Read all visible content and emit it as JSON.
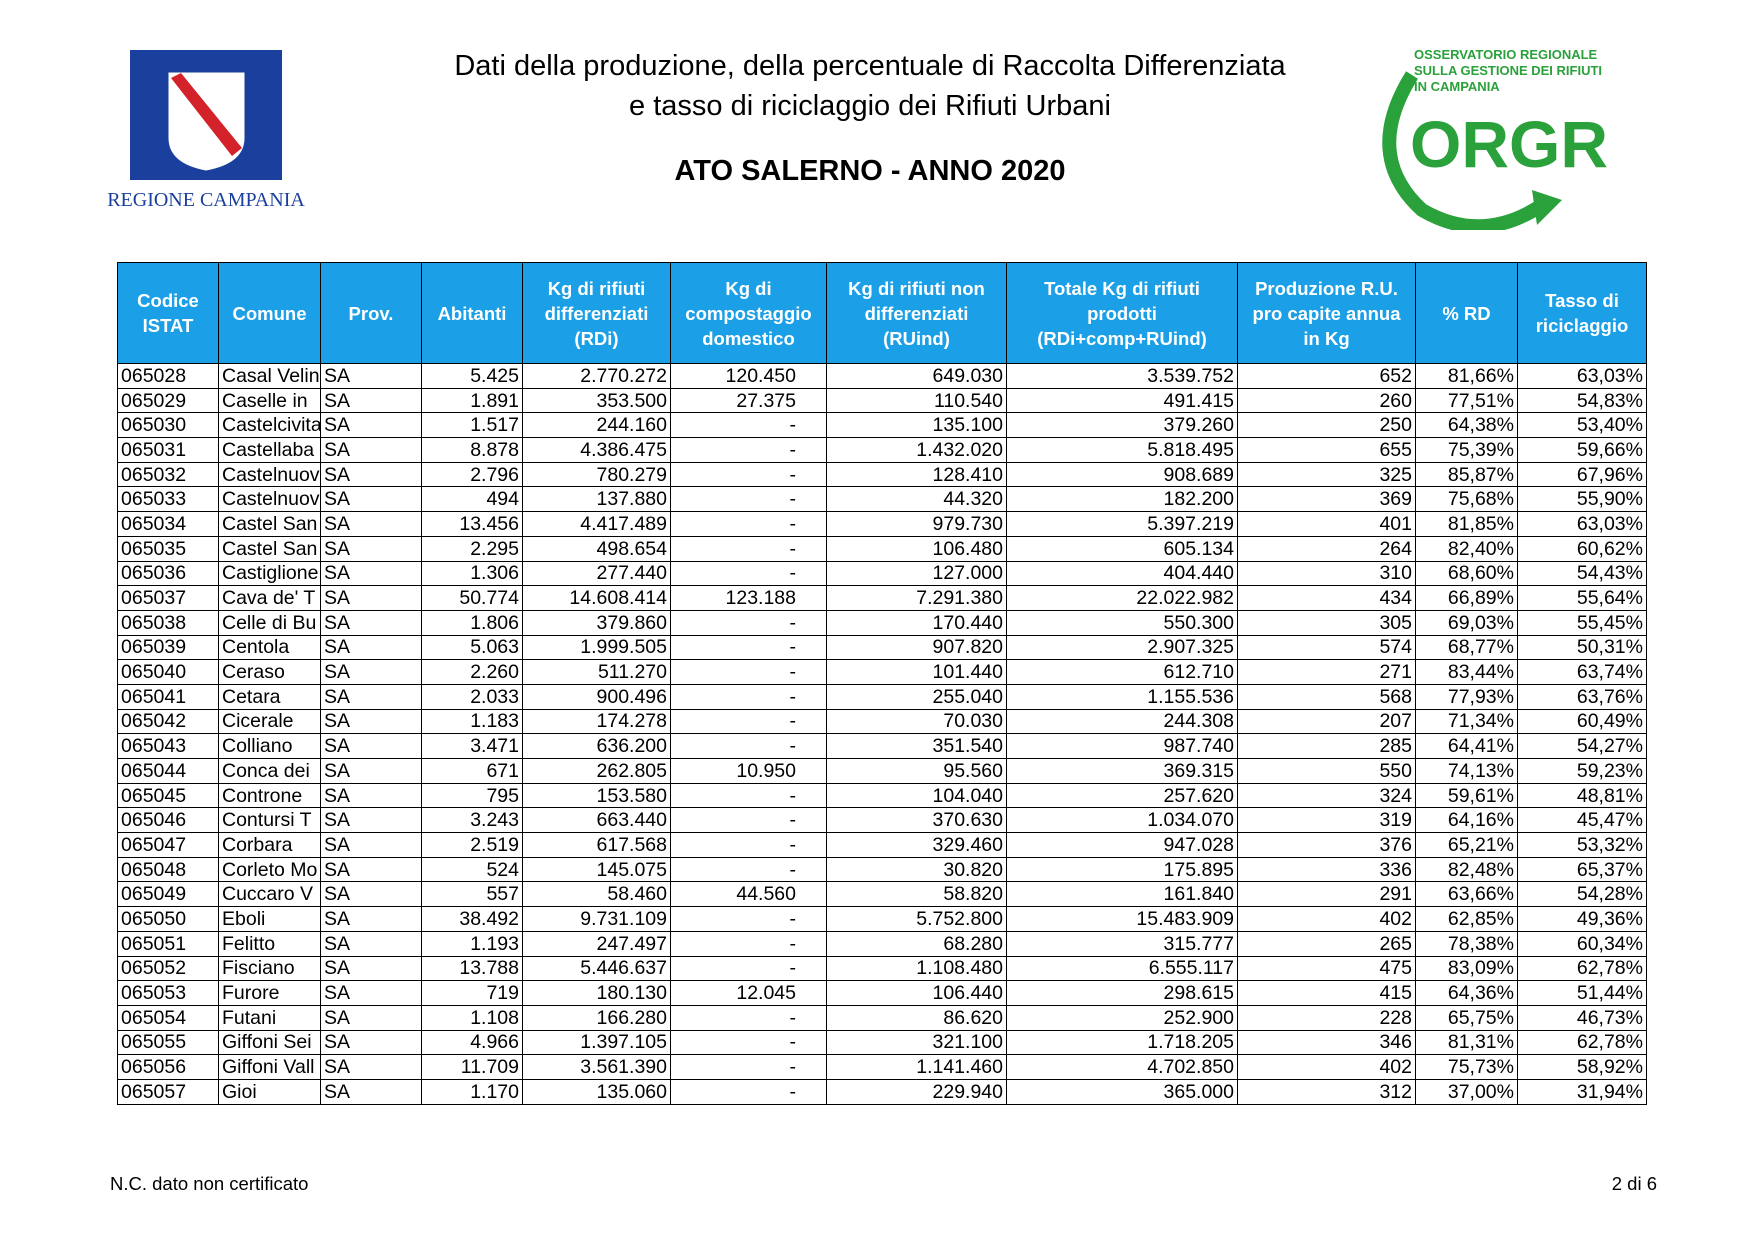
{
  "header": {
    "title_line1": "Dati della produzione, della percentuale di Raccolta Differenziata",
    "title_line2": "e tasso di riciclaggio dei Rifiuti Urbani",
    "subtitle": "ATO SALERNO - ANNO 2020",
    "left_logo": "REGIONE CAMPANIA",
    "right_logo": {
      "line1": "OSSERVATORIO REGIONALE",
      "line2": "SULLA GESTIONE DEI RIFIUTI",
      "line3": "IN CAMPANIA",
      "acronym": "ORGR"
    }
  },
  "table": {
    "columns": [
      "Codice ISTAT",
      "Comune",
      "Prov.",
      "Abitanti",
      "Kg di rifiuti differenziati (RDi)",
      "Kg di compostaggio domestico",
      "Kg di rifiuti non differenziati (RUind)",
      "Totale Kg di rifiuti prodotti (RDi+comp+RUind)",
      "Produzione R.U. pro capite annua in Kg",
      "% RD",
      "Tasso di riciclaggio"
    ],
    "rows": [
      [
        "065028",
        "Casal Velin",
        "SA",
        "5.425",
        "2.770.272",
        "120.450",
        "649.030",
        "3.539.752",
        "652",
        "81,66%",
        "63,03%"
      ],
      [
        "065029",
        "Caselle in",
        "SA",
        "1.891",
        "353.500",
        "27.375",
        "110.540",
        "491.415",
        "260",
        "77,51%",
        "54,83%"
      ],
      [
        "065030",
        "Castelcivita",
        "SA",
        "1.517",
        "244.160",
        "-",
        "135.100",
        "379.260",
        "250",
        "64,38%",
        "53,40%"
      ],
      [
        "065031",
        "Castellaba",
        "SA",
        "8.878",
        "4.386.475",
        "-",
        "1.432.020",
        "5.818.495",
        "655",
        "75,39%",
        "59,66%"
      ],
      [
        "065032",
        "Castelnuov",
        "SA",
        "2.796",
        "780.279",
        "-",
        "128.410",
        "908.689",
        "325",
        "85,87%",
        "67,96%"
      ],
      [
        "065033",
        "Castelnuov",
        "SA",
        "494",
        "137.880",
        "-",
        "44.320",
        "182.200",
        "369",
        "75,68%",
        "55,90%"
      ],
      [
        "065034",
        "Castel San",
        "SA",
        "13.456",
        "4.417.489",
        "-",
        "979.730",
        "5.397.219",
        "401",
        "81,85%",
        "63,03%"
      ],
      [
        "065035",
        "Castel San",
        "SA",
        "2.295",
        "498.654",
        "-",
        "106.480",
        "605.134",
        "264",
        "82,40%",
        "60,62%"
      ],
      [
        "065036",
        "Castiglione",
        "SA",
        "1.306",
        "277.440",
        "-",
        "127.000",
        "404.440",
        "310",
        "68,60%",
        "54,43%"
      ],
      [
        "065037",
        "Cava de' T",
        "SA",
        "50.774",
        "14.608.414",
        "123.188",
        "7.291.380",
        "22.022.982",
        "434",
        "66,89%",
        "55,64%"
      ],
      [
        "065038",
        "Celle di Bu",
        "SA",
        "1.806",
        "379.860",
        "-",
        "170.440",
        "550.300",
        "305",
        "69,03%",
        "55,45%"
      ],
      [
        "065039",
        "Centola",
        "SA",
        "5.063",
        "1.999.505",
        "-",
        "907.820",
        "2.907.325",
        "574",
        "68,77%",
        "50,31%"
      ],
      [
        "065040",
        "Ceraso",
        "SA",
        "2.260",
        "511.270",
        "-",
        "101.440",
        "612.710",
        "271",
        "83,44%",
        "63,74%"
      ],
      [
        "065041",
        "Cetara",
        "SA",
        "2.033",
        "900.496",
        "-",
        "255.040",
        "1.155.536",
        "568",
        "77,93%",
        "63,76%"
      ],
      [
        "065042",
        "Cicerale",
        "SA",
        "1.183",
        "174.278",
        "-",
        "70.030",
        "244.308",
        "207",
        "71,34%",
        "60,49%"
      ],
      [
        "065043",
        "Colliano",
        "SA",
        "3.471",
        "636.200",
        "-",
        "351.540",
        "987.740",
        "285",
        "64,41%",
        "54,27%"
      ],
      [
        "065044",
        "Conca dei",
        "SA",
        "671",
        "262.805",
        "10.950",
        "95.560",
        "369.315",
        "550",
        "74,13%",
        "59,23%"
      ],
      [
        "065045",
        "Controne",
        "SA",
        "795",
        "153.580",
        "-",
        "104.040",
        "257.620",
        "324",
        "59,61%",
        "48,81%"
      ],
      [
        "065046",
        "Contursi T",
        "SA",
        "3.243",
        "663.440",
        "-",
        "370.630",
        "1.034.070",
        "319",
        "64,16%",
        "45,47%"
      ],
      [
        "065047",
        "Corbara",
        "SA",
        "2.519",
        "617.568",
        "-",
        "329.460",
        "947.028",
        "376",
        "65,21%",
        "53,32%"
      ],
      [
        "065048",
        "Corleto Mo",
        "SA",
        "524",
        "145.075",
        "-",
        "30.820",
        "175.895",
        "336",
        "82,48%",
        "65,37%"
      ],
      [
        "065049",
        "Cuccaro V",
        "SA",
        "557",
        "58.460",
        "44.560",
        "58.820",
        "161.840",
        "291",
        "63,66%",
        "54,28%"
      ],
      [
        "065050",
        "Eboli",
        "SA",
        "38.492",
        "9.731.109",
        "-",
        "5.752.800",
        "15.483.909",
        "402",
        "62,85%",
        "49,36%"
      ],
      [
        "065051",
        "Felitto",
        "SA",
        "1.193",
        "247.497",
        "-",
        "68.280",
        "315.777",
        "265",
        "78,38%",
        "60,34%"
      ],
      [
        "065052",
        "Fisciano",
        "SA",
        "13.788",
        "5.446.637",
        "-",
        "1.108.480",
        "6.555.117",
        "475",
        "83,09%",
        "62,78%"
      ],
      [
        "065053",
        "Furore",
        "SA",
        "719",
        "180.130",
        "12.045",
        "106.440",
        "298.615",
        "415",
        "64,36%",
        "51,44%"
      ],
      [
        "065054",
        "Futani",
        "SA",
        "1.108",
        "166.280",
        "-",
        "86.620",
        "252.900",
        "228",
        "65,75%",
        "46,73%"
      ],
      [
        "065055",
        "Giffoni Sei",
        "SA",
        "4.966",
        "1.397.105",
        "-",
        "321.100",
        "1.718.205",
        "346",
        "81,31%",
        "62,78%"
      ],
      [
        "065056",
        "Giffoni Vall",
        "SA",
        "11.709",
        "3.561.390",
        "-",
        "1.141.460",
        "4.702.850",
        "402",
        "75,73%",
        "58,92%"
      ],
      [
        "065057",
        "Gioi",
        "SA",
        "1.170",
        "135.060",
        "-",
        "229.940",
        "365.000",
        "312",
        "37,00%",
        "31,94%"
      ]
    ]
  },
  "footer": {
    "note": "N.C. dato non certificato",
    "page": "2 di 6"
  }
}
